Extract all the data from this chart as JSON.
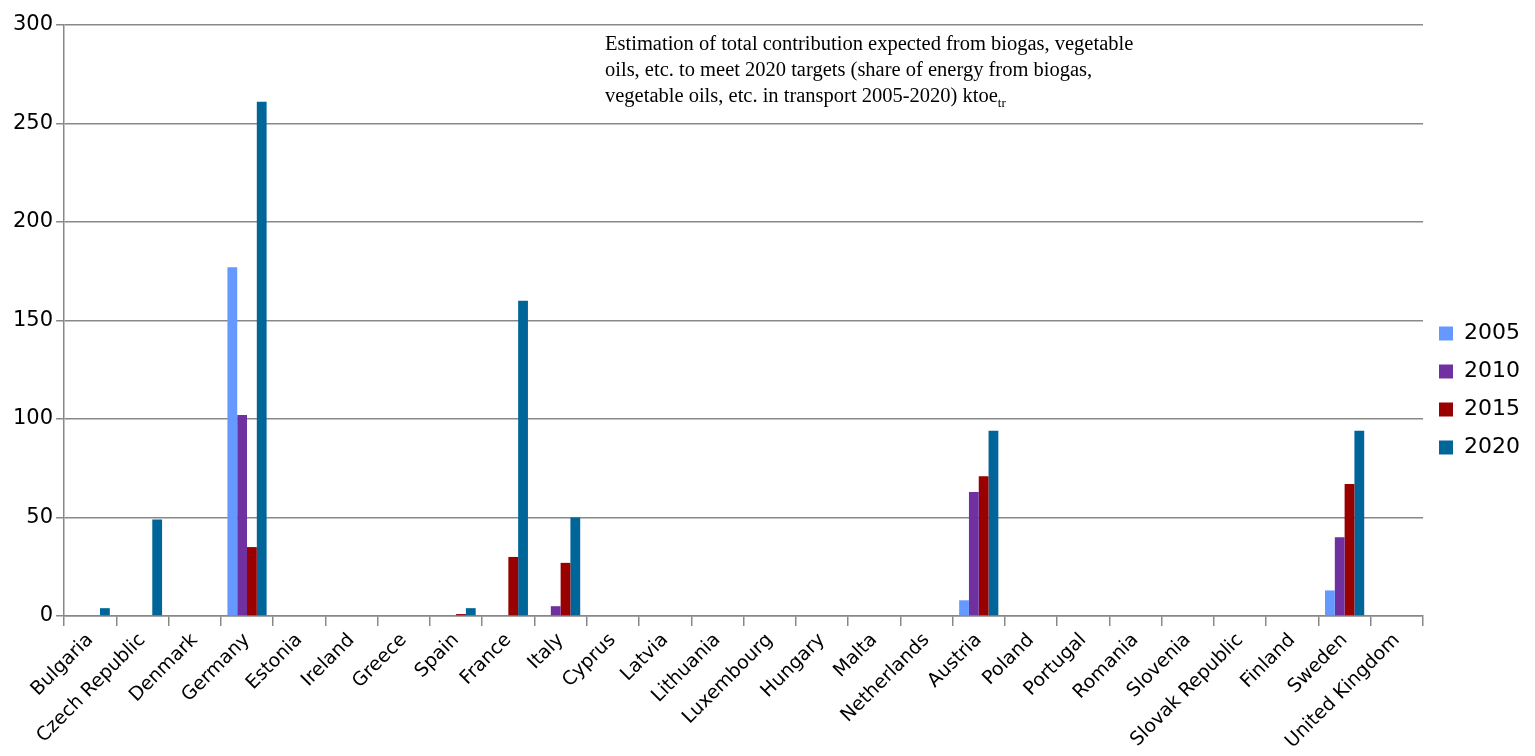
{
  "chart_data": {
    "type": "bar",
    "title": "Estimation of total contribution expected from biogas, vegetable oils, etc. to meet 2020 targets (share of energy from biogas, vegetable oils, etc. in transport 2005-2020) ktoe$_{tr}$",
    "categories": [
      "Bulgaria",
      "Czech Republic",
      "Denmark",
      "Germany",
      "Estonia",
      "Ireland",
      "Greece",
      "Spain",
      "France",
      "Italy",
      "Cyprus",
      "Latvia",
      "Lithuania",
      "Luxembourg",
      "Hungary",
      "Malta",
      "Netherlands",
      "Austria",
      "Poland",
      "Portugal",
      "Romania",
      "Slovenia",
      "Slovak Republic",
      "Finland",
      "Sweden",
      "United Kingdom"
    ],
    "series": [
      {
        "name": "2005",
        "color": "#6699ff",
        "values": [
          0,
          0,
          0,
          177,
          0,
          null,
          0,
          0,
          0,
          0,
          0,
          0,
          0,
          0,
          0,
          0,
          0,
          8,
          0,
          0,
          0,
          0,
          0,
          0,
          13,
          0
        ]
      },
      {
        "name": "2010",
        "color": "#7030a0",
        "values": [
          0,
          0,
          0,
          102,
          0,
          null,
          0,
          0,
          0,
          5,
          0,
          0,
          0,
          0,
          0,
          0,
          0,
          63,
          0,
          0,
          0,
          0,
          0,
          0,
          40,
          0
        ]
      },
      {
        "name": "2015",
        "color": "#990000",
        "values": [
          0,
          0,
          0,
          35,
          0,
          null,
          0,
          1,
          30,
          27,
          0,
          0,
          0,
          0,
          0,
          0,
          0,
          71,
          0,
          0,
          0,
          0,
          0,
          0,
          67,
          0
        ]
      },
      {
        "name": "2020",
        "color": "#006699",
        "values": [
          4,
          49,
          0,
          261,
          0,
          null,
          0,
          4,
          160,
          50,
          0,
          0,
          0,
          0,
          0,
          0,
          0,
          94,
          0,
          0,
          0,
          0,
          0,
          0,
          94,
          0
        ]
      }
    ],
    "ylim": [
      0,
      300
    ],
    "yticks": [
      0,
      50,
      100,
      150,
      200,
      250,
      300
    ],
    "grid": "y",
    "legend": "right"
  }
}
